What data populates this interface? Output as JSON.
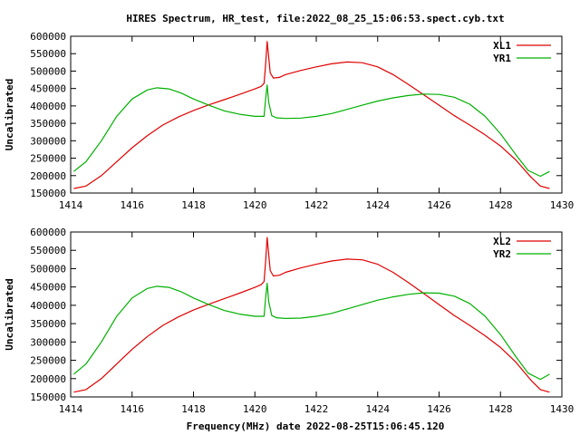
{
  "figure": {
    "title": "HIRES Spectrum, HR_test, file:2022_08_25_15:06:53.spect.cyb.txt",
    "xlabel": "Frequency(MHz) date 2022-08-25T15:06:45.120"
  },
  "chart_data": [
    {
      "type": "line",
      "ylabel": "Uncalibrated",
      "xlim": [
        1414,
        1430
      ],
      "ylim": [
        150000,
        600000
      ],
      "xticks": [
        1414,
        1416,
        1418,
        1420,
        1422,
        1424,
        1426,
        1428,
        1430
      ],
      "xtick_labels": [
        "1414",
        "1416",
        "1418",
        "1420",
        "1422",
        "1424",
        "1426",
        "1428",
        "1430"
      ],
      "yticks": [
        150000,
        200000,
        250000,
        300000,
        350000,
        400000,
        450000,
        500000,
        550000,
        600000
      ],
      "ytick_labels": [
        "150000",
        "200000",
        "250000",
        "300000",
        "350000",
        "400000",
        "450000",
        "500000",
        "550000",
        "600000"
      ],
      "legend_position": "top-right",
      "series": [
        {
          "name": "XL1",
          "color": "#e00000",
          "x": [
            1414.1,
            1414.5,
            1415.0,
            1415.5,
            1416.0,
            1416.5,
            1417.0,
            1417.5,
            1418.0,
            1418.5,
            1419.0,
            1419.5,
            1420.0,
            1420.2,
            1420.3,
            1420.35,
            1420.4,
            1420.45,
            1420.5,
            1420.6,
            1420.8,
            1421.0,
            1421.5,
            1422.0,
            1422.5,
            1423.0,
            1423.5,
            1424.0,
            1424.5,
            1425.0,
            1425.5,
            1426.0,
            1426.5,
            1427.0,
            1427.5,
            1428.0,
            1428.5,
            1429.0,
            1429.3,
            1429.6
          ],
          "values": [
            163000,
            170000,
            200000,
            240000,
            280000,
            315000,
            345000,
            368000,
            387000,
            403000,
            418000,
            433000,
            449000,
            456000,
            465000,
            520000,
            585000,
            540000,
            495000,
            480000,
            482000,
            490000,
            502000,
            512000,
            521000,
            526000,
            524000,
            512000,
            490000,
            462000,
            432000,
            402000,
            372000,
            345000,
            317000,
            285000,
            245000,
            195000,
            170000,
            163000
          ]
        },
        {
          "name": "YR1",
          "color": "#00b000",
          "x": [
            1414.1,
            1414.5,
            1415.0,
            1415.5,
            1416.0,
            1416.5,
            1416.8,
            1417.2,
            1417.6,
            1418.0,
            1418.5,
            1419.0,
            1419.5,
            1420.0,
            1420.3,
            1420.35,
            1420.4,
            1420.45,
            1420.55,
            1420.7,
            1421.0,
            1421.5,
            1422.0,
            1422.5,
            1423.0,
            1423.5,
            1424.0,
            1424.5,
            1425.0,
            1425.5,
            1426.0,
            1426.5,
            1427.0,
            1427.5,
            1428.0,
            1428.5,
            1428.9,
            1429.3,
            1429.6
          ],
          "values": [
            212000,
            240000,
            300000,
            370000,
            420000,
            446000,
            452000,
            449000,
            437000,
            420000,
            402000,
            386000,
            376000,
            370000,
            370000,
            420000,
            460000,
            410000,
            372000,
            366000,
            364000,
            365000,
            370000,
            378000,
            390000,
            402000,
            414000,
            423000,
            430000,
            434000,
            433000,
            425000,
            405000,
            370000,
            320000,
            260000,
            215000,
            198000,
            212000
          ]
        }
      ]
    },
    {
      "type": "line",
      "ylabel": "Uncalibrated",
      "xlim": [
        1414,
        1430
      ],
      "ylim": [
        150000,
        600000
      ],
      "xticks": [
        1414,
        1416,
        1418,
        1420,
        1422,
        1424,
        1426,
        1428,
        1430
      ],
      "xtick_labels": [
        "1414",
        "1416",
        "1418",
        "1420",
        "1422",
        "1424",
        "1426",
        "1428",
        "1430"
      ],
      "yticks": [
        150000,
        200000,
        250000,
        300000,
        350000,
        400000,
        450000,
        500000,
        550000,
        600000
      ],
      "ytick_labels": [
        "150000",
        "200000",
        "250000",
        "300000",
        "350000",
        "400000",
        "450000",
        "500000",
        "550000",
        "600000"
      ],
      "legend_position": "top-right",
      "series": [
        {
          "name": "XL2",
          "color": "#e00000",
          "x": [
            1414.1,
            1414.5,
            1415.0,
            1415.5,
            1416.0,
            1416.5,
            1417.0,
            1417.5,
            1418.0,
            1418.5,
            1419.0,
            1419.5,
            1420.0,
            1420.2,
            1420.3,
            1420.35,
            1420.4,
            1420.45,
            1420.5,
            1420.6,
            1420.8,
            1421.0,
            1421.5,
            1422.0,
            1422.5,
            1423.0,
            1423.5,
            1424.0,
            1424.5,
            1425.0,
            1425.5,
            1426.0,
            1426.5,
            1427.0,
            1427.5,
            1428.0,
            1428.5,
            1429.0,
            1429.3,
            1429.6
          ],
          "values": [
            163000,
            170000,
            200000,
            240000,
            280000,
            315000,
            345000,
            368000,
            387000,
            403000,
            418000,
            433000,
            449000,
            456000,
            465000,
            520000,
            585000,
            540000,
            495000,
            480000,
            482000,
            490000,
            502000,
            512000,
            521000,
            526000,
            524000,
            512000,
            490000,
            462000,
            432000,
            402000,
            372000,
            345000,
            317000,
            285000,
            245000,
            195000,
            170000,
            163000
          ]
        },
        {
          "name": "YR2",
          "color": "#00b000",
          "x": [
            1414.1,
            1414.5,
            1415.0,
            1415.5,
            1416.0,
            1416.5,
            1416.8,
            1417.2,
            1417.6,
            1418.0,
            1418.5,
            1419.0,
            1419.5,
            1420.0,
            1420.3,
            1420.35,
            1420.4,
            1420.45,
            1420.55,
            1420.7,
            1421.0,
            1421.5,
            1422.0,
            1422.5,
            1423.0,
            1423.5,
            1424.0,
            1424.5,
            1425.0,
            1425.5,
            1426.0,
            1426.5,
            1427.0,
            1427.5,
            1428.0,
            1428.5,
            1428.9,
            1429.3,
            1429.6
          ],
          "values": [
            212000,
            240000,
            300000,
            370000,
            420000,
            446000,
            452000,
            449000,
            437000,
            420000,
            402000,
            386000,
            376000,
            370000,
            370000,
            420000,
            460000,
            410000,
            372000,
            366000,
            364000,
            365000,
            370000,
            378000,
            390000,
            402000,
            414000,
            423000,
            430000,
            434000,
            433000,
            425000,
            405000,
            370000,
            320000,
            260000,
            215000,
            198000,
            212000
          ]
        }
      ]
    }
  ]
}
